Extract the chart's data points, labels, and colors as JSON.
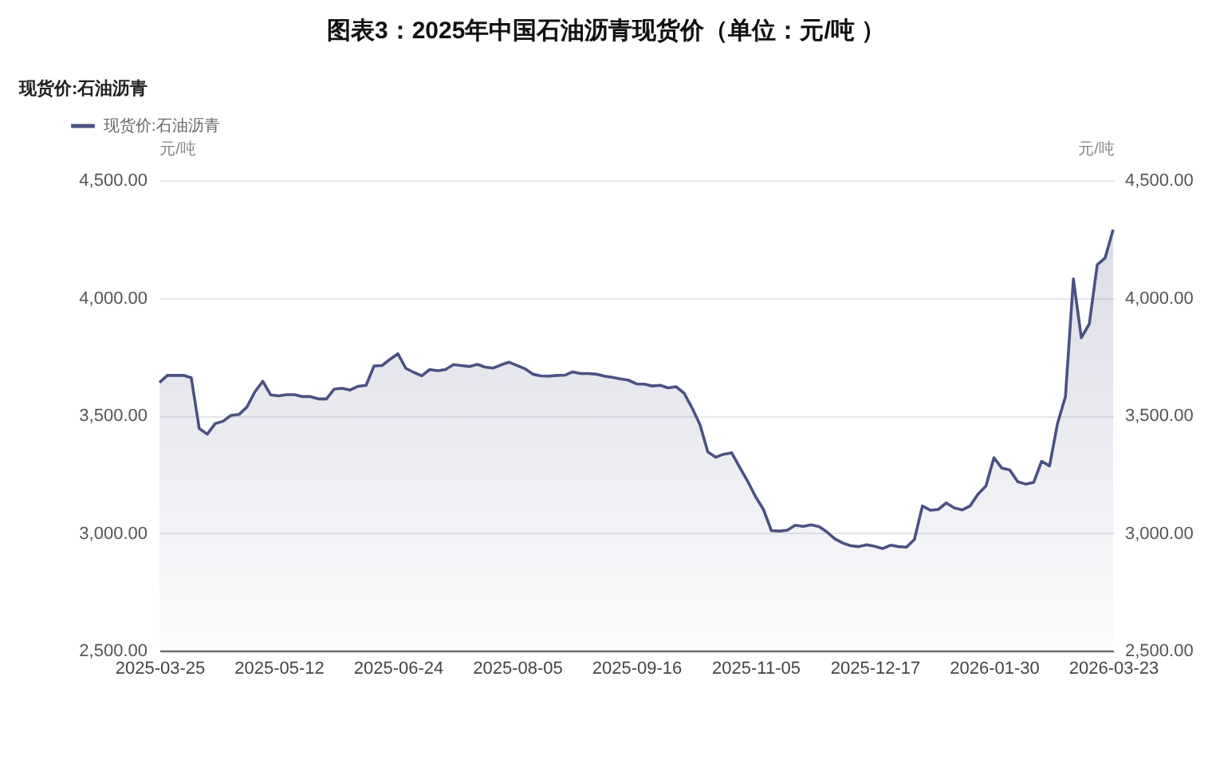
{
  "chart_data": {
    "type": "area",
    "title": "图表3：2025年中国石油沥青现货价（单位：元/吨 ）",
    "subtitle": "现货价:石油沥青",
    "ylabel": "元/吨",
    "y2label": "元/吨",
    "categories": [
      "2025-03-25",
      null,
      null,
      null,
      null,
      null,
      null,
      null,
      null,
      null,
      null,
      null,
      null,
      null,
      null,
      "2025-05-12",
      null,
      null,
      null,
      null,
      null,
      null,
      null,
      null,
      null,
      null,
      null,
      null,
      null,
      null,
      "2025-06-24",
      null,
      null,
      null,
      null,
      null,
      null,
      null,
      null,
      null,
      null,
      null,
      null,
      null,
      null,
      "2025-08-05",
      null,
      null,
      null,
      null,
      null,
      null,
      null,
      null,
      null,
      null,
      null,
      null,
      null,
      null,
      "2025-09-16",
      null,
      null,
      null,
      null,
      null,
      null,
      null,
      null,
      null,
      null,
      null,
      null,
      null,
      null,
      "2025-11-05",
      null,
      null,
      null,
      null,
      null,
      null,
      null,
      null,
      null,
      null,
      null,
      null,
      null,
      null,
      "2025-12-17",
      null,
      null,
      null,
      null,
      null,
      null,
      null,
      null,
      null,
      null,
      null,
      null,
      null,
      null,
      "2026-01-30",
      null,
      null,
      null,
      null,
      null,
      null,
      null,
      null,
      null,
      null,
      null,
      null,
      null,
      null,
      "2026-03-23"
    ],
    "series": [
      {
        "name": "现货价:石油沥青",
        "color": "#4b5183",
        "values": [
          3640,
          3670,
          3670,
          3670,
          3660,
          3445,
          3420,
          3465,
          3475,
          3500,
          3504,
          3535,
          3600,
          3645,
          3587,
          3583,
          3588,
          3588,
          3580,
          3580,
          3570,
          3570,
          3612,
          3615,
          3608,
          3624,
          3628,
          3710,
          3712,
          3738,
          3762,
          3700,
          3683,
          3668,
          3695,
          3690,
          3695,
          3716,
          3712,
          3708,
          3717,
          3705,
          3701,
          3715,
          3726,
          3712,
          3698,
          3675,
          3668,
          3667,
          3670,
          3671,
          3685,
          3678,
          3678,
          3675,
          3667,
          3662,
          3655,
          3650,
          3634,
          3633,
          3625,
          3628,
          3617,
          3622,
          3595,
          3533,
          3462,
          3345,
          3322,
          3335,
          3341,
          3280,
          3221,
          3155,
          3100,
          3010,
          3008,
          3012,
          3033,
          3028,
          3035,
          3027,
          3004,
          2975,
          2957,
          2946,
          2942,
          2950,
          2943,
          2934,
          2948,
          2942,
          2940,
          2973,
          3115,
          3097,
          3100,
          3128,
          3107,
          3098,
          3115,
          3165,
          3200,
          3320,
          3276,
          3268,
          3218,
          3208,
          3215,
          3305,
          3285,
          3465,
          3580,
          4080,
          3830,
          3889,
          4140,
          4170,
          4290
        ]
      }
    ],
    "ylim": [
      2500,
      4500
    ],
    "yticks": [
      {
        "value": 2500,
        "label": "2,500.00"
      },
      {
        "value": 3000,
        "label": "3,000.00"
      },
      {
        "value": 3500,
        "label": "3,500.00"
      },
      {
        "value": 4000,
        "label": "4,000.00"
      },
      {
        "value": 4500,
        "label": "4,500.00"
      }
    ],
    "y2lim": [
      2500,
      4500
    ],
    "y2ticks": [
      {
        "value": 2500,
        "label": "2,500.00"
      },
      {
        "value": 3000,
        "label": "3,000.00"
      },
      {
        "value": 3500,
        "label": "3,500.00"
      },
      {
        "value": 4000,
        "label": "4,000.00"
      },
      {
        "value": 4500,
        "label": "4,500.00"
      }
    ],
    "grid": "y",
    "legend": "top left"
  }
}
